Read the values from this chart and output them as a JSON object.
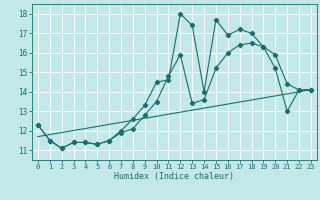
{
  "xlabel": "Humidex (Indice chaleur)",
  "background_color": "#c2e8e8",
  "grid_color": "#ffffff",
  "line_color": "#1a6e6e",
  "xlim": [
    -0.5,
    23.5
  ],
  "ylim": [
    10.5,
    18.5
  ],
  "xticks": [
    0,
    1,
    2,
    3,
    4,
    5,
    6,
    7,
    8,
    9,
    10,
    11,
    12,
    13,
    14,
    15,
    16,
    17,
    18,
    19,
    20,
    21,
    22,
    23
  ],
  "yticks": [
    11,
    12,
    13,
    14,
    15,
    16,
    17,
    18
  ],
  "line1_x": [
    0,
    1,
    2,
    3,
    4,
    5,
    6,
    7,
    8,
    9,
    10,
    11,
    12,
    13,
    14,
    15,
    16,
    17,
    18,
    19,
    20,
    21,
    22,
    23
  ],
  "line1_y": [
    12.3,
    11.5,
    11.1,
    11.4,
    11.4,
    11.3,
    11.5,
    12.0,
    12.6,
    13.3,
    14.5,
    14.6,
    18.0,
    17.4,
    14.0,
    17.7,
    16.9,
    17.2,
    17.0,
    16.3,
    15.9,
    14.4,
    14.1,
    14.1
  ],
  "line2_x": [
    0,
    1,
    2,
    3,
    4,
    5,
    6,
    7,
    8,
    9,
    10,
    11,
    12,
    13,
    14,
    15,
    16,
    17,
    18,
    19,
    20,
    21,
    22,
    23
  ],
  "line2_y": [
    12.3,
    11.5,
    11.1,
    11.4,
    11.4,
    11.3,
    11.5,
    11.9,
    12.1,
    12.8,
    13.5,
    14.8,
    15.9,
    13.4,
    13.6,
    15.2,
    16.0,
    16.4,
    16.5,
    16.3,
    15.2,
    13.0,
    14.1,
    14.1
  ],
  "line3_x": [
    0,
    23
  ],
  "line3_y": [
    11.7,
    14.1
  ]
}
